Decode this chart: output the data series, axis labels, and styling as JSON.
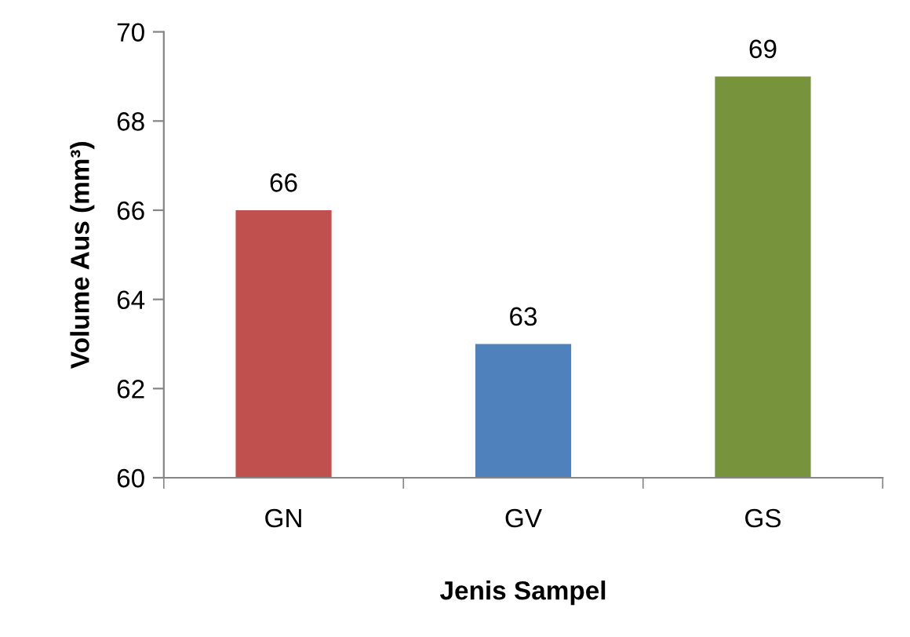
{
  "chart_data": {
    "type": "bar",
    "xlabel": "Jenis Sampel",
    "ylabel": "Volume Aus (mm³)",
    "categories": [
      "GN",
      "GV",
      "GS"
    ],
    "values": [
      66,
      63,
      69
    ],
    "colors": [
      "#c0504d",
      "#4f81bd",
      "#77933c"
    ],
    "ylim": [
      60,
      70
    ],
    "yticks": [
      60,
      62,
      64,
      66,
      68,
      70
    ],
    "grid": false,
    "legend": false,
    "data_labels": true
  }
}
